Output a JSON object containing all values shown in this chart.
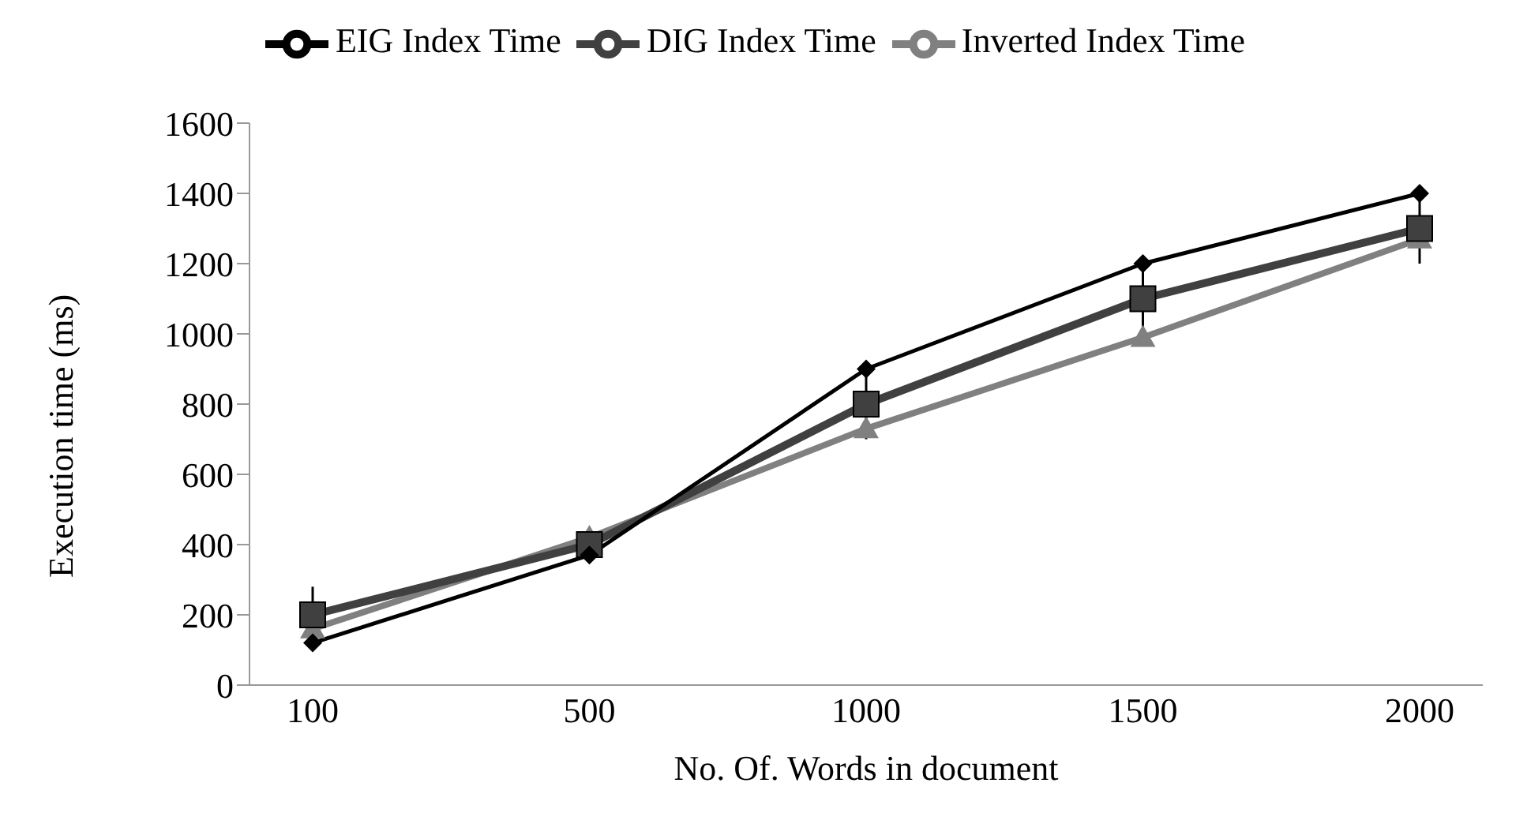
{
  "chart_data": {
    "type": "line",
    "xlabel": "No. Of. Words in document",
    "ylabel": "Execution  time (ms)",
    "categories": [
      "100",
      "500",
      "1000",
      "1500",
      "2000"
    ],
    "series": [
      {
        "name": "EIG Index Time",
        "color": "#000000",
        "marker": "diamond",
        "values": [
          120,
          370,
          900,
          1200,
          1400
        ]
      },
      {
        "name": "DIG Index Time",
        "color": "#404040",
        "marker": "square",
        "values": [
          200,
          400,
          800,
          1100,
          1300
        ],
        "errors": [
          80,
          null,
          100,
          100,
          100
        ]
      },
      {
        "name": "Inverted Index Time",
        "color": "#808080",
        "marker": "triangle",
        "values": [
          160,
          420,
          730,
          990,
          1270
        ]
      }
    ],
    "ylim": [
      0,
      1600
    ],
    "yticks": [
      0,
      200,
      400,
      600,
      800,
      1000,
      1200,
      1400,
      1600
    ],
    "grid": false,
    "legend": "top"
  }
}
